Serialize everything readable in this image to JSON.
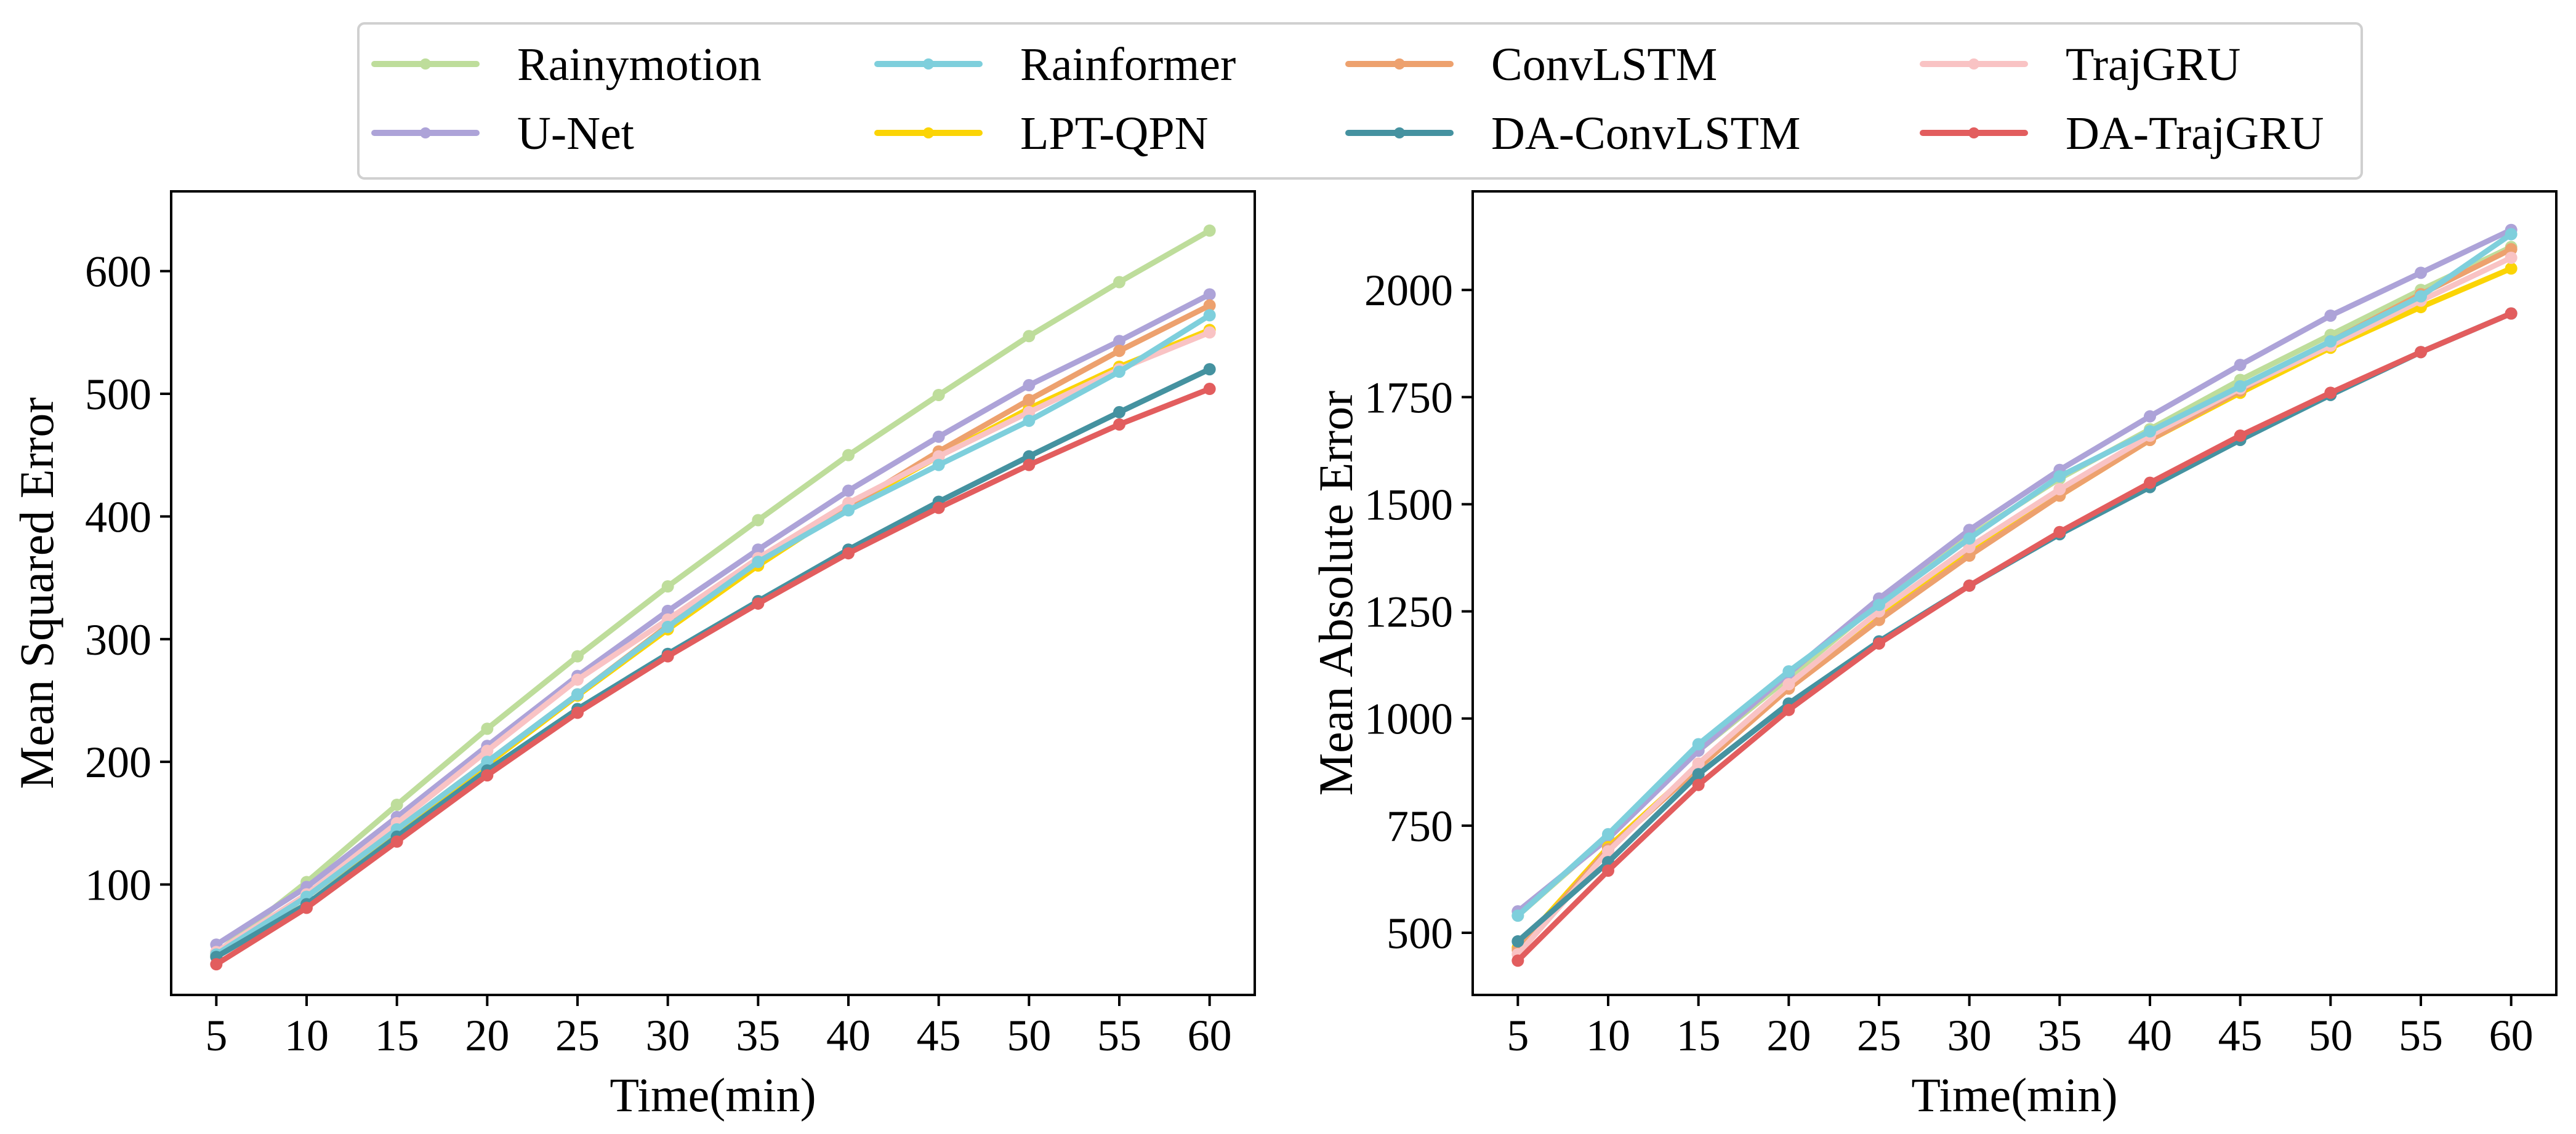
{
  "chart_data": [
    {
      "type": "line",
      "title": "",
      "xlabel": "Time(min)",
      "ylabel": "Mean Squared Error",
      "x": [
        5,
        10,
        15,
        20,
        25,
        30,
        35,
        40,
        45,
        50,
        55,
        60
      ],
      "xlim": [
        2.5,
        62.5
      ],
      "ylim": [
        10,
        665
      ],
      "yticks": [
        100,
        200,
        300,
        400,
        500,
        600
      ],
      "grid": false,
      "series": [
        {
          "name": "Rainymotion",
          "values": [
            44,
            102,
            165,
            227,
            286,
            343,
            397,
            450,
            499,
            547,
            591,
            633
          ]
        },
        {
          "name": "U-Net",
          "values": [
            51,
            98,
            155,
            213,
            270,
            323,
            373,
            421,
            465,
            507,
            543,
            581
          ]
        },
        {
          "name": "Rainformer",
          "values": [
            43,
            90,
            145,
            200,
            255,
            310,
            363,
            405,
            442,
            478,
            518,
            564
          ]
        },
        {
          "name": "LPT-QPN",
          "values": [
            42,
            90,
            144,
            198,
            254,
            308,
            360,
            408,
            449,
            488,
            522,
            552
          ]
        },
        {
          "name": "ConvLSTM",
          "values": [
            43,
            90,
            145,
            200,
            255,
            311,
            363,
            408,
            453,
            495,
            535,
            572
          ]
        },
        {
          "name": "DA-ConvLSTM",
          "values": [
            41,
            84,
            139,
            193,
            243,
            288,
            331,
            373,
            412,
            449,
            485,
            520
          ]
        },
        {
          "name": "TrajGRU",
          "values": [
            45,
            92,
            150,
            209,
            267,
            316,
            366,
            411,
            449,
            485,
            520,
            550
          ]
        },
        {
          "name": "DA-TrajGRU",
          "values": [
            35,
            81,
            135,
            189,
            240,
            286,
            329,
            370,
            407,
            442,
            475,
            504
          ]
        }
      ]
    },
    {
      "type": "line",
      "title": "",
      "xlabel": "Time(min)",
      "ylabel": "Mean Absolute Error",
      "x": [
        5,
        10,
        15,
        20,
        25,
        30,
        35,
        40,
        45,
        50,
        55,
        60
      ],
      "xlim": [
        2.5,
        62.5
      ],
      "ylim": [
        355,
        2230
      ],
      "yticks": [
        500,
        750,
        1000,
        1250,
        1500,
        1750,
        2000
      ],
      "grid": false,
      "series": [
        {
          "name": "Rainymotion",
          "values": [
            540,
            725,
            925,
            1095,
            1270,
            1425,
            1560,
            1675,
            1790,
            1895,
            2000,
            2100
          ]
        },
        {
          "name": "U-Net",
          "values": [
            550,
            720,
            925,
            1105,
            1280,
            1440,
            1580,
            1705,
            1825,
            1940,
            2040,
            2140
          ]
        },
        {
          "name": "Rainformer",
          "values": [
            540,
            730,
            940,
            1110,
            1265,
            1420,
            1565,
            1670,
            1775,
            1880,
            1985,
            2130
          ]
        },
        {
          "name": "LPT-QPN",
          "values": [
            465,
            700,
            890,
            1070,
            1235,
            1385,
            1520,
            1650,
            1760,
            1865,
            1960,
            2050
          ]
        },
        {
          "name": "ConvLSTM",
          "values": [
            460,
            695,
            885,
            1070,
            1230,
            1380,
            1520,
            1650,
            1765,
            1880,
            1990,
            2095
          ]
        },
        {
          "name": "DA-ConvLSTM",
          "values": [
            480,
            665,
            870,
            1035,
            1180,
            1310,
            1430,
            1540,
            1650,
            1755,
            1855,
            1945
          ]
        },
        {
          "name": "TrajGRU",
          "values": [
            450,
            690,
            895,
            1080,
            1250,
            1400,
            1535,
            1660,
            1770,
            1870,
            1975,
            2075
          ]
        },
        {
          "name": "DA-TrajGRU",
          "values": [
            435,
            645,
            845,
            1020,
            1175,
            1310,
            1435,
            1550,
            1660,
            1760,
            1855,
            1945
          ]
        }
      ]
    }
  ],
  "legend": {
    "placement": "top-center",
    "entries": [
      {
        "name": "Rainymotion",
        "color": "#bedd9b"
      },
      {
        "name": "Rainformer",
        "color": "#7ecfdc"
      },
      {
        "name": "ConvLSTM",
        "color": "#eda16e"
      },
      {
        "name": "TrajGRU",
        "color": "#f9c3c4"
      },
      {
        "name": "U-Net",
        "color": "#ada3d8"
      },
      {
        "name": "LPT-QPN",
        "color": "#fbd405"
      },
      {
        "name": "DA-ConvLSTM",
        "color": "#4592a0"
      },
      {
        "name": "DA-TrajGRU",
        "color": "#e25d5e"
      }
    ]
  },
  "series_colors": {
    "Rainymotion": "#bedd9b",
    "U-Net": "#ada3d8",
    "Rainformer": "#7ecfdc",
    "LPT-QPN": "#fbd405",
    "ConvLSTM": "#eda16e",
    "DA-ConvLSTM": "#4592a0",
    "TrajGRU": "#f9c3c4",
    "DA-TrajGRU": "#e25d5e"
  },
  "draw_order": [
    "Rainymotion",
    "U-Net",
    "LPT-QPN",
    "ConvLSTM",
    "TrajGRU",
    "Rainformer",
    "DA-ConvLSTM",
    "DA-TrajGRU"
  ]
}
